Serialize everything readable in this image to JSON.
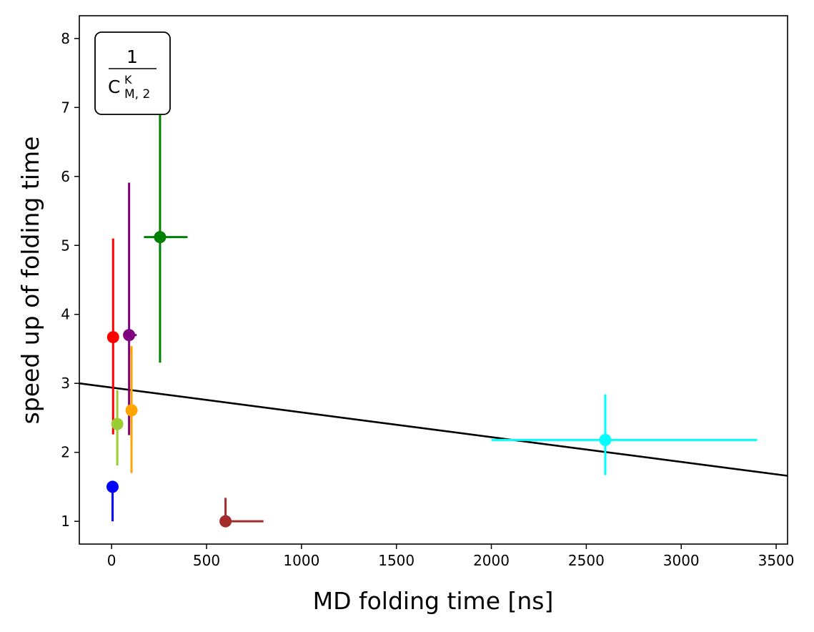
{
  "chart_data": {
    "type": "scatter",
    "xlabel": "MD folding time [ns]",
    "ylabel": "speed up of folding time",
    "xlim": [
      -170,
      3560
    ],
    "ylim": [
      0.67,
      8.33
    ],
    "x_ticks": [
      0,
      500,
      1000,
      1500,
      2000,
      2500,
      3000,
      3500
    ],
    "y_ticks": [
      1,
      2,
      3,
      4,
      5,
      6,
      7,
      8
    ],
    "grid": false,
    "legend": {
      "placement": "top-left",
      "numerator": "1",
      "base": "C",
      "superscript": "K",
      "subscript": "M, 2"
    },
    "points": [
      {
        "color": "#ff0000",
        "x": 8,
        "y": 3.67,
        "xerr": [
          0,
          0
        ],
        "yerr": [
          1.41,
          1.43
        ]
      },
      {
        "color": "#800080",
        "x": 92,
        "y": 3.7,
        "xerr": [
          0,
          40
        ],
        "yerr": [
          1.45,
          2.21
        ]
      },
      {
        "color": "#008000",
        "x": 255,
        "y": 5.12,
        "xerr": [
          85,
          145
        ],
        "yerr": [
          1.82,
          1.88
        ]
      },
      {
        "color": "#ffa500",
        "x": 105,
        "y": 2.61,
        "xerr": [
          0,
          0
        ],
        "yerr": [
          0.91,
          0.93
        ]
      },
      {
        "color": "#9acd32",
        "x": 30,
        "y": 2.41,
        "xerr": [
          0,
          0
        ],
        "yerr": [
          0.6,
          0.49
        ]
      },
      {
        "color": "#0000ff",
        "x": 5,
        "y": 1.5,
        "xerr": [
          0,
          0
        ],
        "yerr": [
          0.5,
          0
        ]
      },
      {
        "color": "#a52a2a",
        "x": 600,
        "y": 1.0,
        "xerr": [
          0,
          200
        ],
        "yerr": [
          0,
          0.34
        ]
      },
      {
        "color": "#00ffff",
        "x": 2600,
        "y": 2.18,
        "xerr": [
          600,
          800
        ],
        "yerr": [
          0.51,
          0.66
        ]
      }
    ],
    "fit_line": {
      "color": "#000000",
      "x": [
        -170,
        3560
      ],
      "y": [
        3.0,
        1.66
      ]
    }
  }
}
